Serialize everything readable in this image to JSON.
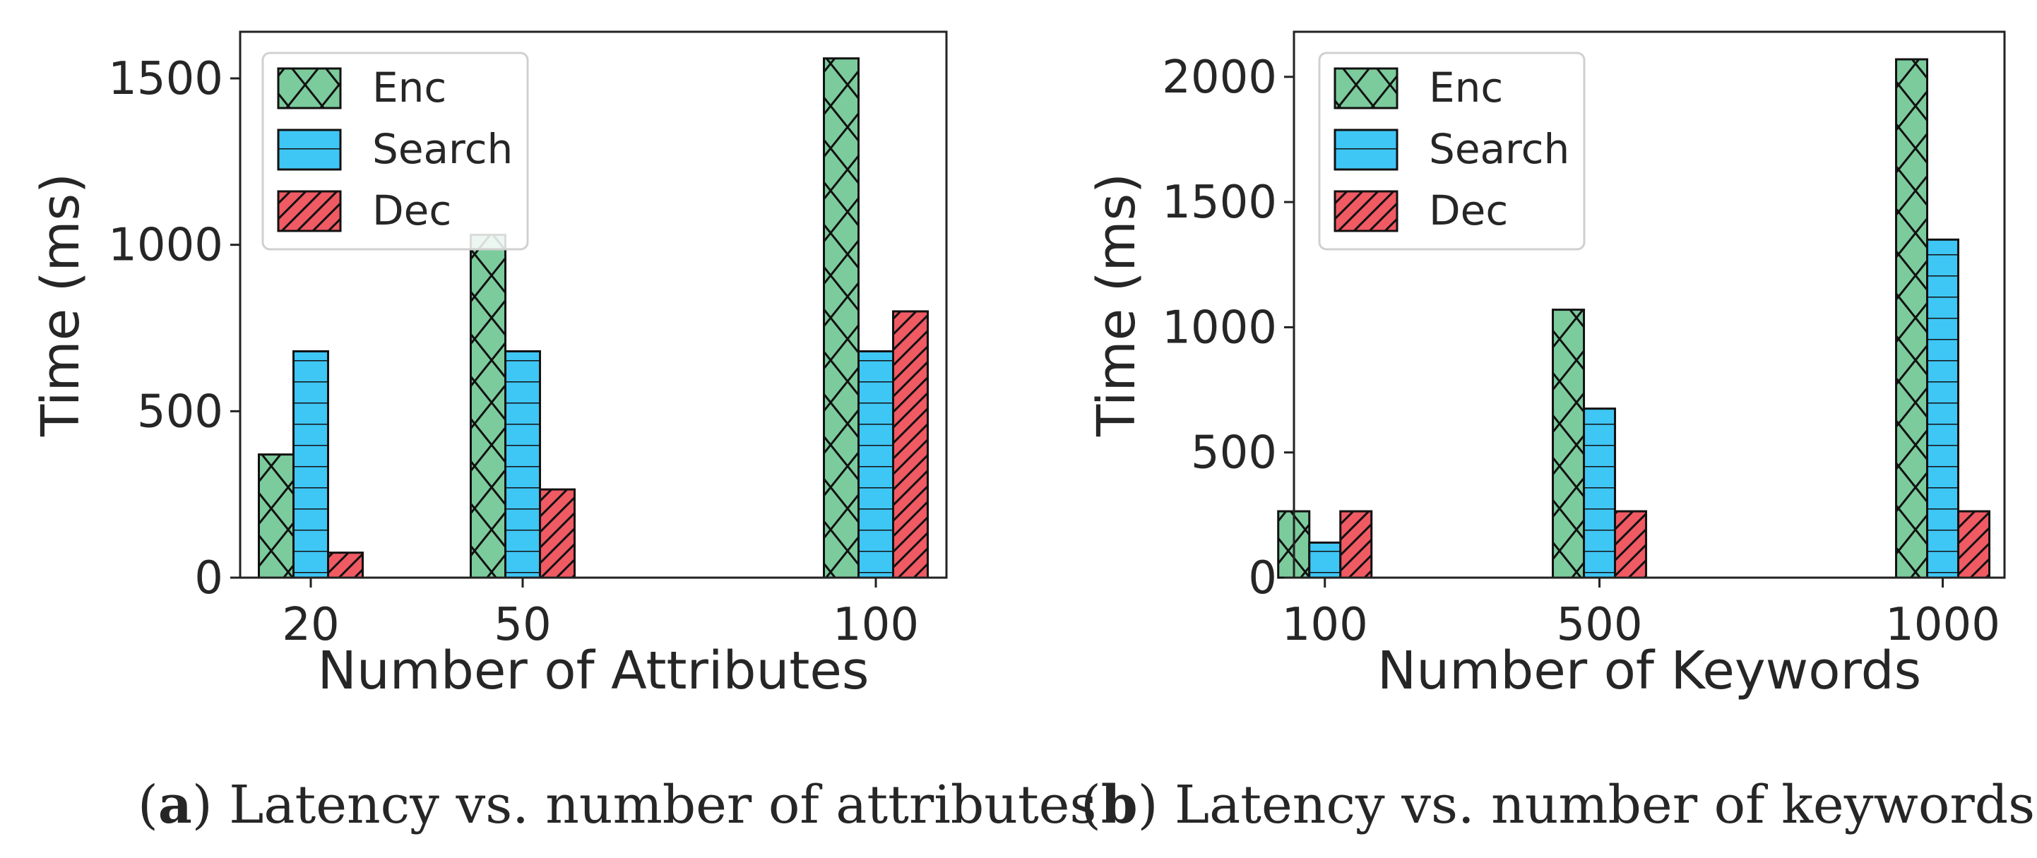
{
  "chart_data": [
    {
      "type": "bar",
      "id": "a",
      "categories": [
        "20",
        "50",
        "100"
      ],
      "category_positions": [
        20,
        50,
        100
      ],
      "x_ticks": [
        20,
        50,
        100
      ],
      "xlim": [
        10,
        110
      ],
      "series": [
        {
          "name": "Enc",
          "values": [
            370,
            1030,
            1560
          ],
          "color": "#7ccb9c",
          "hatch": "x"
        },
        {
          "name": "Search",
          "values": [
            680,
            680,
            680
          ],
          "color": "#3ec6f5",
          "hatch": "-"
        },
        {
          "name": "Dec",
          "values": [
            75,
            265,
            800
          ],
          "color": "#ef5a63",
          "hatch": "/"
        }
      ],
      "xlabel": "Number of Attributes",
      "ylabel": "Time (ms)",
      "ylim": [
        0,
        1640
      ],
      "y_ticks": [
        0,
        500,
        1000,
        1500
      ],
      "legend": "top-left",
      "caption_letter": "a",
      "caption_text": " Latency vs. number of attributes"
    },
    {
      "type": "bar",
      "id": "b",
      "categories": [
        "100",
        "500",
        "1000"
      ],
      "category_positions": [
        100,
        500,
        1000
      ],
      "x_ticks": [
        100,
        500,
        1000
      ],
      "xlim": [
        55,
        1090
      ],
      "series": [
        {
          "name": "Enc",
          "values": [
            265,
            1070,
            2070
          ],
          "color": "#7ccb9c",
          "hatch": "x"
        },
        {
          "name": "Search",
          "values": [
            140,
            675,
            1350
          ],
          "color": "#3ec6f5",
          "hatch": "-"
        },
        {
          "name": "Dec",
          "values": [
            265,
            265,
            265
          ],
          "color": "#ef5a63",
          "hatch": "/"
        }
      ],
      "xlabel": "Number of Keywords",
      "ylabel": "Time (ms)",
      "ylim": [
        0,
        2180
      ],
      "y_ticks": [
        0,
        500,
        1000,
        1500,
        2000
      ],
      "legend": "top-left",
      "caption_letter": "b",
      "caption_text": " Latency vs. number of keywords"
    }
  ]
}
